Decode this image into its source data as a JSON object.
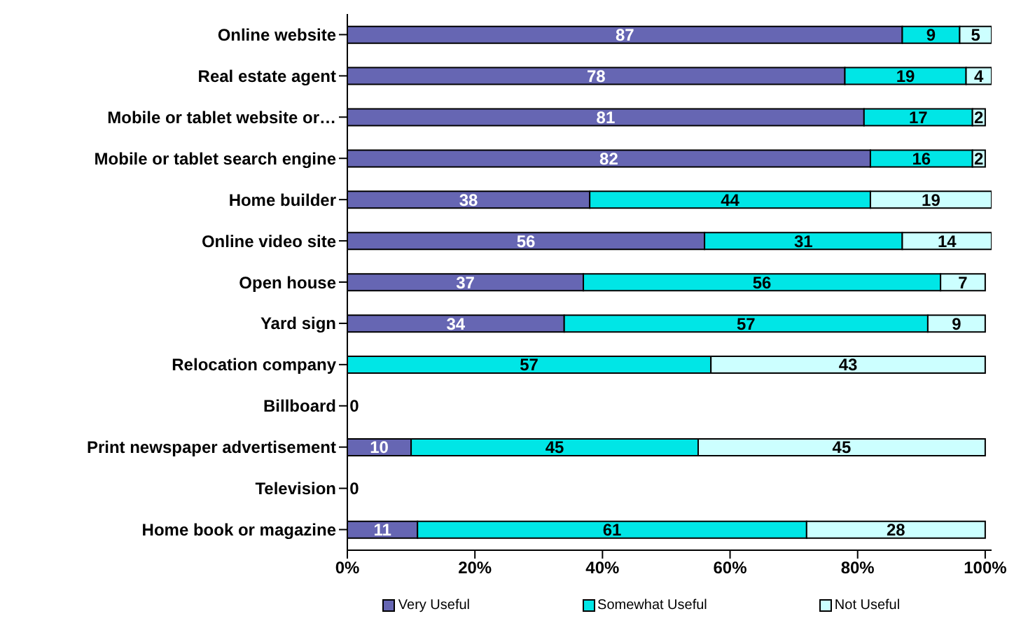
{
  "chart_data": {
    "type": "bar",
    "orientation": "horizontal",
    "stacked": true,
    "categories": [
      "Online website",
      "Real estate agent",
      "Mobile or tablet website or…",
      "Mobile or tablet search engine",
      "Home builder",
      "Online video site",
      "Open house",
      "Yard sign",
      "Relocation company",
      "Billboard",
      "Print newspaper advertisement",
      "Television",
      "Home book or magazine"
    ],
    "series": [
      {
        "name": "Very Useful",
        "color": "#6666b3",
        "values": [
          87,
          78,
          81,
          82,
          38,
          56,
          37,
          34,
          null,
          null,
          10,
          null,
          11
        ]
      },
      {
        "name": "Somewhat Useful",
        "color": "#00e6e6",
        "values": [
          9,
          19,
          17,
          16,
          44,
          31,
          56,
          57,
          57,
          null,
          45,
          null,
          61
        ]
      },
      {
        "name": "Not Useful",
        "color": "#ccffff",
        "values": [
          5,
          4,
          2,
          2,
          19,
          14,
          7,
          9,
          43,
          0,
          45,
          0,
          28
        ]
      }
    ],
    "xlim": [
      0,
      101
    ],
    "xticks": [
      {
        "value": 0,
        "label": "0%"
      },
      {
        "value": 20,
        "label": "20%"
      },
      {
        "value": 40,
        "label": "40%"
      },
      {
        "value": 60,
        "label": "60%"
      },
      {
        "value": 80,
        "label": "80%"
      },
      {
        "value": 100,
        "label": "100%"
      }
    ],
    "data_labels": true,
    "legend": "bottom",
    "grid": false
  }
}
